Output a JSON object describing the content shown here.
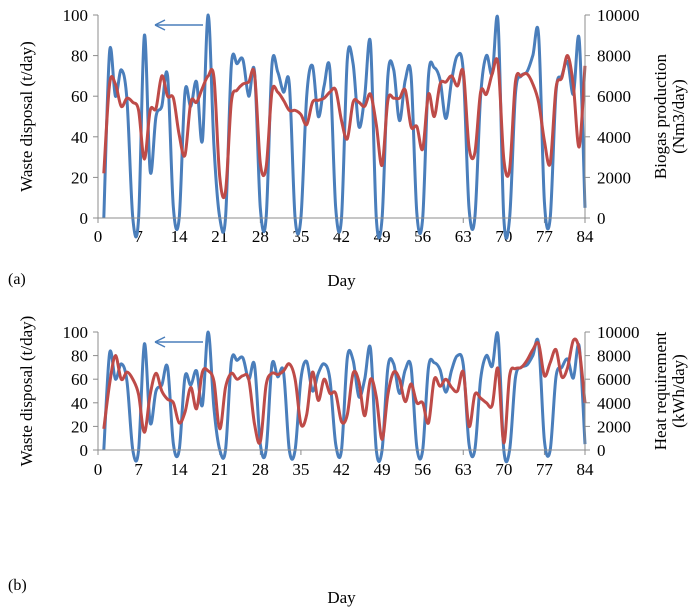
{
  "colors": {
    "waste": "#4a7ebb",
    "secondary": "#be4b48",
    "axis": "#8c8c8c"
  },
  "chart_data": [
    {
      "type": "line",
      "panel_label": "(a)",
      "xlabel": "Day",
      "ylabel_left": "Waste disposal (t/day)",
      "ylabel_right_line1": "Biogas production",
      "ylabel_right_line2": "(Nm3/day)",
      "xlim": [
        0,
        84
      ],
      "ylim_left": [
        0,
        100
      ],
      "ylim_right": [
        0,
        10000
      ],
      "xticks": [
        "0",
        "7",
        "14",
        "21",
        "28",
        "35",
        "42",
        "49",
        "56",
        "63",
        "70",
        "77",
        "84"
      ],
      "yticks_left": [
        "0",
        "20",
        "40",
        "60",
        "80",
        "100"
      ],
      "yticks_right": [
        "0",
        "2000",
        "4000",
        "6000",
        "8000",
        "10000"
      ],
      "arrow_annotation": "points to left axis",
      "series": [
        {
          "axis": "left",
          "color": "#4a7ebb",
          "values": [
            0,
            82,
            60,
            73,
            58,
            0,
            0,
            90,
            23,
            50,
            55,
            70,
            5,
            0,
            62,
            55,
            67,
            38,
            100,
            35,
            0,
            0,
            75,
            76,
            78,
            60,
            72,
            5,
            0,
            75,
            72,
            62,
            66,
            0,
            0,
            60,
            75,
            50,
            65,
            73,
            5,
            0,
            78,
            76,
            45,
            60,
            86,
            0,
            0,
            70,
            73,
            48,
            68,
            70,
            2,
            0,
            70,
            74,
            68,
            49,
            68,
            80,
            72,
            5,
            0,
            60,
            80,
            71,
            97,
            0,
            0,
            61,
            70,
            72,
            80,
            90,
            8,
            0,
            62,
            70,
            77,
            61,
            88,
            5
          ]
        },
        {
          "axis": "right",
          "values": [
            2200,
            6600,
            6600,
            5500,
            5900,
            5700,
            5300,
            2900,
            5300,
            5400,
            7000,
            6000,
            5900,
            4100,
            3100,
            5700,
            5700,
            6400,
            7000,
            6900,
            2000,
            1300,
            5700,
            6300,
            6600,
            6700,
            7100,
            2700,
            2500,
            6200,
            6200,
            5800,
            5300,
            5300,
            5100,
            4600,
            5700,
            5800,
            5900,
            6200,
            6300,
            4800,
            3900,
            5700,
            5700,
            5500,
            6100,
            4600,
            2600,
            5800,
            5900,
            5900,
            6300,
            4500,
            4500,
            3400,
            6100,
            5000,
            6600,
            6700,
            7000,
            6500,
            7200,
            3500,
            3200,
            6200,
            6100,
            7100,
            7600,
            2900,
            2400,
            6700,
            7000,
            7100,
            6600,
            5700,
            3800,
            2700,
            6400,
            6900,
            8000,
            6500,
            3500,
            7500
          ]
        }
      ]
    },
    {
      "type": "line",
      "panel_label": "(b)",
      "xlabel": "Day",
      "ylabel_left": "Waste disposal (t/day)",
      "ylabel_right_line1": "Heat requirement",
      "ylabel_right_line2": "(kWh/day)",
      "xlim": [
        0,
        84
      ],
      "ylim_left": [
        0,
        100
      ],
      "ylim_right": [
        0,
        10000
      ],
      "xticks": [
        "0",
        "7",
        "14",
        "21",
        "28",
        "35",
        "42",
        "49",
        "56",
        "63",
        "70",
        "77",
        "84"
      ],
      "yticks_left": [
        "0",
        "20",
        "40",
        "60",
        "80",
        "100"
      ],
      "yticks_right": [
        "0",
        "2000",
        "4000",
        "6000",
        "8000",
        "10000"
      ],
      "arrow_annotation": "points to left axis",
      "series": [
        {
          "axis": "left",
          "color": "#4a7ebb",
          "values": [
            0,
            82,
            60,
            73,
            58,
            0,
            0,
            90,
            23,
            50,
            55,
            70,
            5,
            0,
            62,
            55,
            67,
            38,
            100,
            35,
            0,
            0,
            75,
            76,
            78,
            60,
            72,
            5,
            0,
            72,
            62,
            66,
            0,
            0,
            60,
            75,
            50,
            65,
            73,
            60,
            5,
            0,
            78,
            76,
            45,
            60,
            86,
            0,
            0,
            70,
            73,
            48,
            68,
            70,
            2,
            0,
            70,
            74,
            68,
            49,
            68,
            80,
            72,
            5,
            0,
            60,
            80,
            71,
            97,
            0,
            0,
            61,
            70,
            72,
            80,
            90,
            8,
            0,
            62,
            70,
            77,
            61,
            88,
            5
          ]
        },
        {
          "axis": "right",
          "values": [
            1800,
            5600,
            8000,
            6000,
            6600,
            6000,
            4700,
            1500,
            4700,
            6500,
            5000,
            4300,
            4000,
            2300,
            3200,
            5300,
            3500,
            6600,
            6700,
            5800,
            1800,
            5300,
            6500,
            6000,
            6300,
            6000,
            2200,
            700,
            5500,
            6500,
            6400,
            6700,
            7300,
            6000,
            2200,
            3000,
            6600,
            4200,
            6000,
            4800,
            4800,
            2400,
            3000,
            6500,
            5800,
            2900,
            6000,
            4500,
            900,
            4700,
            6600,
            6000,
            4100,
            5600,
            4000,
            4000,
            2300,
            6000,
            5400,
            6000,
            5300,
            5000,
            6600,
            2000,
            4700,
            4400,
            4000,
            3800,
            6900,
            600,
            6300,
            6900,
            7000,
            7600,
            8500,
            9000,
            6300,
            7400,
            8500,
            6200,
            7000,
            9300,
            8500,
            4000
          ]
        }
      ]
    }
  ]
}
